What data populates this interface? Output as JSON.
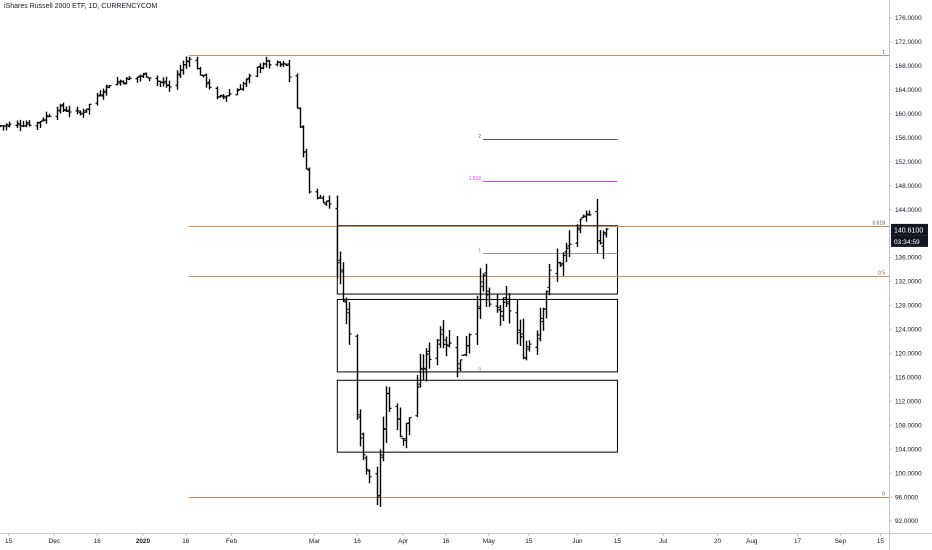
{
  "header": {
    "title": "iShares Russell 2000 ETF, 1D, CURRENCYCOM"
  },
  "chart_data": {
    "type": "ohlc-bar",
    "title": "iShares Russell 2000 ETF, 1D, CURRENCYCOM",
    "ylim": [
      90,
      178
    ],
    "y_ticks": [
      "176.0000",
      "172.0000",
      "168.0000",
      "164.0000",
      "160.0000",
      "156.0000",
      "152.0000",
      "148.0000",
      "144.0000",
      "140.0000",
      "136.0000",
      "132.0000",
      "128.0000",
      "124.0000",
      "120.0000",
      "116.0000",
      "112.0000",
      "108.0000",
      "104.0000",
      "100.0000",
      "96.0000",
      "92.0000"
    ],
    "x_ticks": [
      {
        "label": "15",
        "date": "2019-11-15"
      },
      {
        "label": "Dec",
        "date": "2019-12-01"
      },
      {
        "label": "16",
        "date": "2019-12-16"
      },
      {
        "label": "2020",
        "date": "2020-01-01"
      },
      {
        "label": "16",
        "date": "2020-01-16"
      },
      {
        "label": "Feb",
        "date": "2020-02-01"
      },
      {
        "label": "Mar",
        "date": "2020-03-01"
      },
      {
        "label": "16",
        "date": "2020-03-16"
      },
      {
        "label": "Apr",
        "date": "2020-04-01"
      },
      {
        "label": "16",
        "date": "2020-04-16"
      },
      {
        "label": "May",
        "date": "2020-05-01"
      },
      {
        "label": "15",
        "date": "2020-05-15"
      },
      {
        "label": "Jun",
        "date": "2020-06-01"
      },
      {
        "label": "15",
        "date": "2020-06-15"
      },
      {
        "label": "Jul",
        "date": "2020-07-01"
      },
      {
        "label": "20",
        "date": "2020-07-20"
      },
      {
        "label": "Aug",
        "date": "2020-08-01"
      },
      {
        "label": "17",
        "date": "2020-08-17"
      },
      {
        "label": "Sep",
        "date": "2020-09-01"
      },
      {
        "label": "15",
        "date": "2020-09-15"
      }
    ],
    "x_range": [
      "2019-11-12",
      "2020-09-18"
    ],
    "price_anchor": [
      {
        "date": "2019-11-12",
        "close": 158.0
      },
      {
        "date": "2019-11-25",
        "close": 158.5
      },
      {
        "date": "2019-12-02",
        "close": 161.0
      },
      {
        "date": "2019-12-10",
        "close": 160.0
      },
      {
        "date": "2019-12-20",
        "close": 165.0
      },
      {
        "date": "2020-01-02",
        "close": 166.5
      },
      {
        "date": "2020-01-10",
        "close": 164.5
      },
      {
        "date": "2020-01-17",
        "close": 169.5
      },
      {
        "date": "2020-01-27",
        "close": 162.5
      },
      {
        "date": "2020-02-03",
        "close": 164.0
      },
      {
        "date": "2020-02-12",
        "close": 168.5
      },
      {
        "date": "2020-02-20",
        "close": 168.0
      },
      {
        "date": "2020-02-24",
        "close": 161.0
      },
      {
        "date": "2020-02-28",
        "close": 147.0
      },
      {
        "date": "2020-03-06",
        "close": 145.0
      },
      {
        "date": "2020-03-12",
        "close": 127.0
      },
      {
        "date": "2020-03-18",
        "close": 103.0
      },
      {
        "date": "2020-03-23",
        "close": 96.5
      },
      {
        "date": "2020-03-26",
        "close": 113.0
      },
      {
        "date": "2020-04-01",
        "close": 106.0
      },
      {
        "date": "2020-04-08",
        "close": 118.0
      },
      {
        "date": "2020-04-14",
        "close": 123.5
      },
      {
        "date": "2020-04-21",
        "close": 118.5
      },
      {
        "date": "2020-04-29",
        "close": 132.5
      },
      {
        "date": "2020-05-01",
        "close": 127.0
      },
      {
        "date": "2020-05-08",
        "close": 127.5
      },
      {
        "date": "2020-05-13",
        "close": 120.5
      },
      {
        "date": "2020-05-18",
        "close": 124.0
      },
      {
        "date": "2020-05-22",
        "close": 133.0
      },
      {
        "date": "2020-05-27",
        "close": 136.0
      },
      {
        "date": "2020-06-02",
        "close": 142.0
      },
      {
        "date": "2020-06-05",
        "close": 143.5
      },
      {
        "date": "2020-06-09",
        "close": 138.5
      },
      {
        "date": "2020-06-11",
        "close": 140.6
      }
    ],
    "fib_levels": [
      {
        "label": "1",
        "value": 169.9,
        "color": "#c8905f",
        "start": "2020-01-17"
      },
      {
        "label": "0.618",
        "value": 141.3,
        "color": "#c8905f",
        "start": "2020-01-17"
      },
      {
        "label": "0.5",
        "value": 132.9,
        "color": "#c8905f",
        "start": "2020-01-17"
      },
      {
        "label": "0",
        "value": 96.0,
        "color": "#c8905f",
        "start": "2020-01-17"
      }
    ],
    "extension": {
      "start": "2020-04-29",
      "end": "2020-06-15",
      "levels": [
        {
          "label": "2",
          "value": 155.8,
          "color": "#555555"
        },
        {
          "label": "1.618",
          "value": 148.8,
          "color": "#e040fb"
        },
        {
          "label": "1",
          "value": 136.8,
          "color": "#999999"
        },
        {
          "label": "0",
          "value": 116.9,
          "color": "#999999"
        }
      ]
    },
    "boxes": [
      {
        "start": "2020-03-09",
        "end": "2020-06-15",
        "top": 141.3,
        "bottom": 129.9
      },
      {
        "start": "2020-03-09",
        "end": "2020-06-15",
        "top": 129.0,
        "bottom": 116.9
      },
      {
        "start": "2020-03-09",
        "end": "2020-06-15",
        "top": 115.5,
        "bottom": 103.5
      }
    ],
    "last_price": "140.6100",
    "countdown": "03:34:59",
    "colors": {
      "bars": "#000000",
      "fib": "#c8905f",
      "axis_text": "#131722",
      "tag_bg": "#131722"
    }
  }
}
